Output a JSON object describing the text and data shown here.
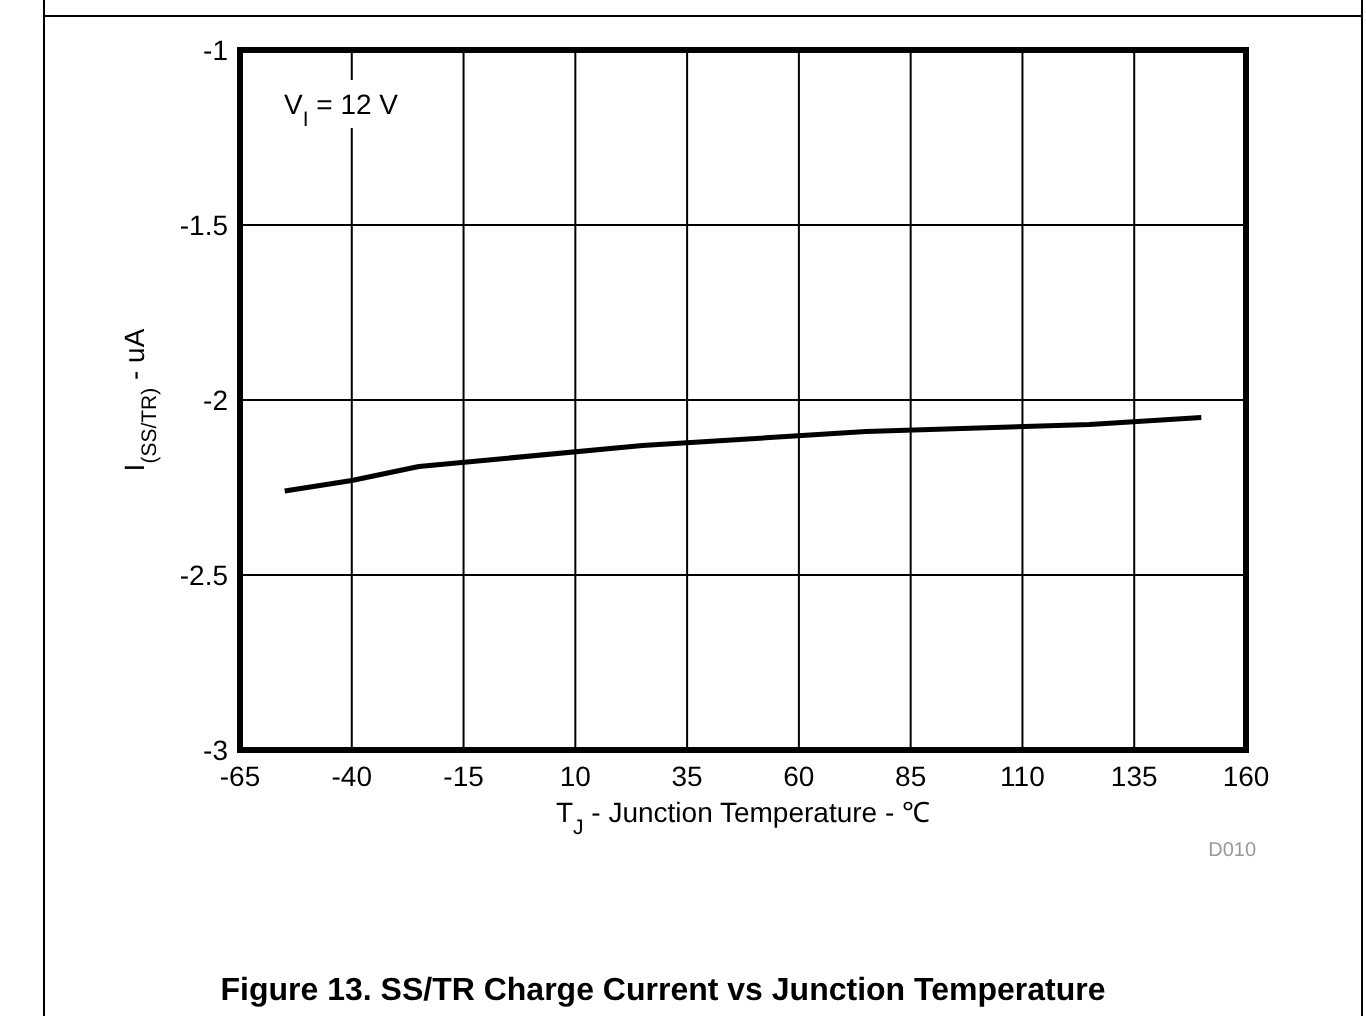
{
  "chart_data": {
    "type": "line",
    "title": "Figure 13. SS/TR Charge Current vs Junction Temperature",
    "xlabel": "T$_{J}$ - Junction Temperature - ℃",
    "ylabel": "I$_{(SS/TR)}$ - uA",
    "annotations": [
      "V$_{I}$ = 12 V",
      "D010"
    ],
    "x": [
      -55,
      -40,
      -25,
      25,
      75,
      125,
      150
    ],
    "series": [
      {
        "color": "#000000",
        "values": [
          -2.26,
          -2.23,
          -2.19,
          -2.13,
          -2.09,
          -2.07,
          -2.05
        ]
      }
    ],
    "xlim": [
      -65,
      160
    ],
    "xticks": [
      -65,
      -40,
      -15,
      10,
      35,
      60,
      85,
      110,
      135,
      160
    ],
    "ylim": [
      -3,
      -1
    ],
    "yticks": [
      -3,
      -2.5,
      -2,
      -1.5,
      -1
    ],
    "grid": true,
    "marker": "none",
    "line_style": "solid"
  }
}
